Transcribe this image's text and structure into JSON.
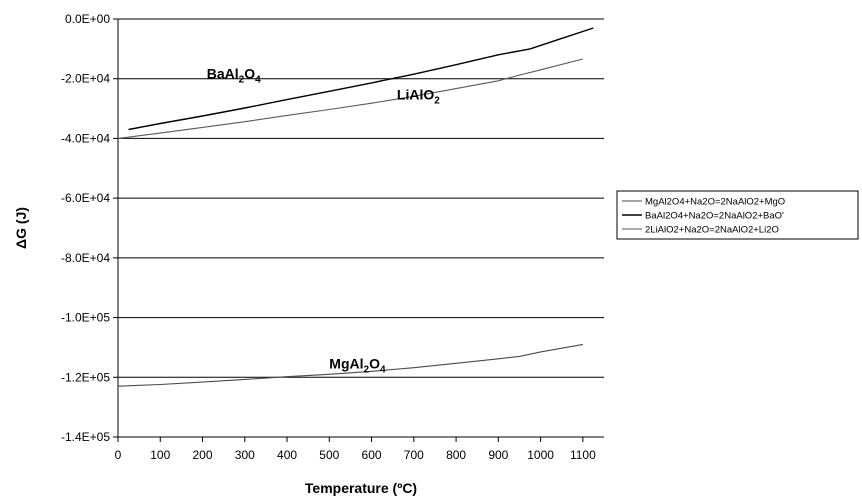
{
  "chart_data": {
    "type": "line",
    "title": "",
    "xlabel": "Temperature (ºC)",
    "ylabel": "ΔG (J)",
    "xlim": [
      0,
      1150
    ],
    "ylim": [
      -140000,
      0
    ],
    "x_ticks": [
      0,
      100,
      200,
      300,
      400,
      500,
      600,
      700,
      800,
      900,
      1000,
      1100
    ],
    "x_tick_labels": [
      "0",
      "100",
      "200",
      "300",
      "400",
      "500",
      "600",
      "700",
      "800",
      "900",
      "1000",
      "1100"
    ],
    "y_ticks": [
      0,
      -20000,
      -40000,
      -60000,
      -80000,
      -100000,
      -120000,
      -140000
    ],
    "y_tick_labels": [
      "0.0E+00",
      "-2.0E+04",
      "-4.0E+04",
      "-6.0E+04",
      "-8.0E+04",
      "-1.0E+05",
      "-1.2E+05",
      "-1.4E+05"
    ],
    "grid": "horizontal",
    "legend_position": "right",
    "series": [
      {
        "name": "MgAl2O4+Na2O=2NaAlO2+MgO",
        "color": "#4a4a4a",
        "x": [
          0,
          100,
          200,
          300,
          400,
          500,
          600,
          700,
          800,
          900,
          950,
          1000,
          1100
        ],
        "y": [
          -123000,
          -122400,
          -121600,
          -120700,
          -119800,
          -119000,
          -118000,
          -116800,
          -115300,
          -113800,
          -113000,
          -111500,
          -109000
        ]
      },
      {
        "name": "BaAl2O4+Na2O=2NaAlO2+BaO'",
        "color": "#000000",
        "x": [
          25,
          100,
          200,
          300,
          400,
          500,
          600,
          700,
          800,
          900,
          975,
          1050,
          1125
        ],
        "y": [
          -37000,
          -35000,
          -32500,
          -29800,
          -27000,
          -24200,
          -21400,
          -18500,
          -15300,
          -12000,
          -10000,
          -6500,
          -3000
        ]
      },
      {
        "name": "2LiAlO2+Na2O=2NaAlO2+Li2O",
        "color": "#5a5a5a",
        "x": [
          0,
          100,
          200,
          300,
          400,
          500,
          600,
          700,
          800,
          900,
          950,
          1000,
          1100
        ],
        "y": [
          -40000,
          -38200,
          -36300,
          -34400,
          -32300,
          -30300,
          -28200,
          -25900,
          -23300,
          -20700,
          -18800,
          -17000,
          -13400
        ]
      }
    ],
    "annotations": [
      {
        "name": "BaAl2O4",
        "base1": "BaAl",
        "sub1": "2",
        "base2": "O",
        "sub2": "4",
        "x": 210,
        "y": -20000
      },
      {
        "name": "LiAlO2",
        "base1": "LiAlO",
        "sub1": "2",
        "base2": "",
        "sub2": "",
        "x": 660,
        "y": -27000
      },
      {
        "name": "MgAl2O4",
        "base1": "MgAl",
        "sub1": "2",
        "base2": "O",
        "sub2": "4",
        "x": 500,
        "y": -117000
      }
    ]
  }
}
